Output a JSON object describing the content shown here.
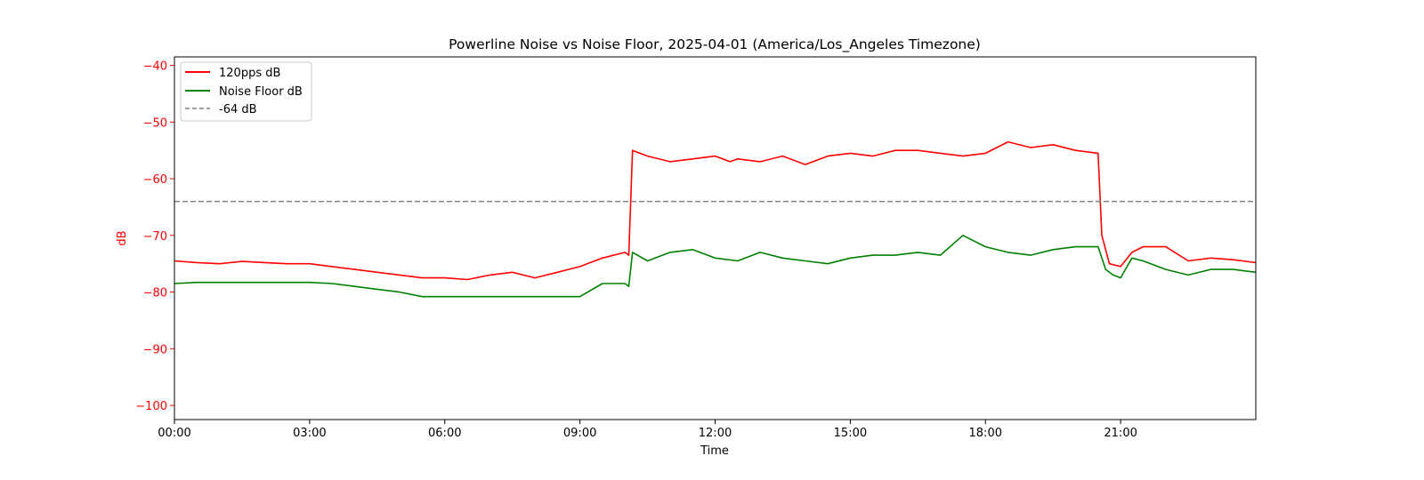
{
  "chart_data": {
    "type": "line",
    "title": "Powerline Noise vs Noise Floor, 2025-04-01 (America/Los_Angeles Timezone)",
    "xlabel": "Time",
    "ylabel": "dB",
    "xlim": [
      "00:00",
      "24:00"
    ],
    "ylim": [
      -102.5,
      -38.5
    ],
    "x_ticks": [
      "00:00",
      "03:00",
      "06:00",
      "09:00",
      "12:00",
      "15:00",
      "18:00",
      "21:00"
    ],
    "y_ticks": [
      -40,
      -50,
      -60,
      -70,
      -80,
      -90,
      -100
    ],
    "y_tick_labels": [
      "−40",
      "−50",
      "−60",
      "−70",
      "−80",
      "−90",
      "−100"
    ],
    "grid": false,
    "legend_position": "upper-left",
    "ylabel_color": "#ff0000",
    "series": [
      {
        "name": "120pps dB",
        "color": "#ff0000",
        "style": "solid",
        "x": [
          "00:00",
          "00:30",
          "01:00",
          "01:30",
          "02:00",
          "02:30",
          "03:00",
          "03:30",
          "04:00",
          "04:30",
          "05:00",
          "05:30",
          "06:00",
          "06:30",
          "07:00",
          "07:30",
          "08:00",
          "08:30",
          "09:00",
          "09:30",
          "10:00",
          "10:05",
          "10:10",
          "10:30",
          "11:00",
          "11:30",
          "12:00",
          "12:20",
          "12:30",
          "13:00",
          "13:30",
          "14:00",
          "14:30",
          "15:00",
          "15:30",
          "16:00",
          "16:30",
          "17:00",
          "17:30",
          "18:00",
          "18:30",
          "19:00",
          "19:30",
          "20:00",
          "20:30",
          "20:35",
          "20:45",
          "21:00",
          "21:15",
          "21:30",
          "22:00",
          "22:30",
          "23:00",
          "23:30",
          "24:00"
        ],
        "y": [
          -74.5,
          -74.8,
          -75.0,
          -74.6,
          -74.8,
          -75.0,
          -75.0,
          -75.5,
          -76.0,
          -76.5,
          -77.0,
          -77.5,
          -77.5,
          -77.8,
          -77.0,
          -76.5,
          -77.5,
          -76.5,
          -75.5,
          -74.0,
          -73.0,
          -73.5,
          -55.0,
          -56.0,
          -57.0,
          -56.5,
          -56.0,
          -57.0,
          -56.5,
          -57.0,
          -56.0,
          -57.5,
          -56.0,
          -55.5,
          -56.0,
          -55.0,
          -55.0,
          -55.5,
          -56.0,
          -55.5,
          -53.5,
          -54.5,
          -54.0,
          -55.0,
          -55.5,
          -70.0,
          -75.0,
          -75.5,
          -73.0,
          -72.0,
          -72.0,
          -74.5,
          -74.0,
          -74.3,
          -74.8
        ]
      },
      {
        "name": "Noise Floor dB",
        "color": "#008000",
        "style": "solid",
        "x": [
          "00:00",
          "00:30",
          "01:00",
          "01:30",
          "02:00",
          "02:30",
          "03:00",
          "03:30",
          "04:00",
          "04:30",
          "05:00",
          "05:30",
          "06:00",
          "06:30",
          "07:00",
          "07:30",
          "08:00",
          "08:30",
          "09:00",
          "09:30",
          "10:00",
          "10:05",
          "10:10",
          "10:30",
          "11:00",
          "11:30",
          "12:00",
          "12:30",
          "13:00",
          "13:30",
          "14:00",
          "14:30",
          "15:00",
          "15:30",
          "16:00",
          "16:30",
          "17:00",
          "17:30",
          "18:00",
          "18:30",
          "19:00",
          "19:30",
          "20:00",
          "20:30",
          "20:40",
          "20:50",
          "21:00",
          "21:15",
          "21:30",
          "22:00",
          "22:30",
          "23:00",
          "23:30",
          "24:00"
        ],
        "y": [
          -78.5,
          -78.3,
          -78.3,
          -78.3,
          -78.3,
          -78.3,
          -78.3,
          -78.5,
          -79.0,
          -79.5,
          -80.0,
          -80.8,
          -80.8,
          -80.8,
          -80.8,
          -80.8,
          -80.8,
          -80.8,
          -80.8,
          -78.5,
          -78.5,
          -79.0,
          -73.0,
          -74.5,
          -73.0,
          -72.5,
          -74.0,
          -74.5,
          -73.0,
          -74.0,
          -74.5,
          -75.0,
          -74.0,
          -73.5,
          -73.5,
          -73.0,
          -73.5,
          -70.0,
          -72.0,
          -73.0,
          -73.5,
          -72.5,
          -72.0,
          -72.0,
          -76.0,
          -77.0,
          -77.5,
          -74.0,
          -74.5,
          -76.0,
          -77.0,
          -76.0,
          -76.0,
          -76.5
        ]
      },
      {
        "name": "-64 dB",
        "color": "#808080",
        "style": "dashed",
        "x": [
          "00:00",
          "24:00"
        ],
        "y": [
          -64,
          -64
        ]
      }
    ]
  }
}
